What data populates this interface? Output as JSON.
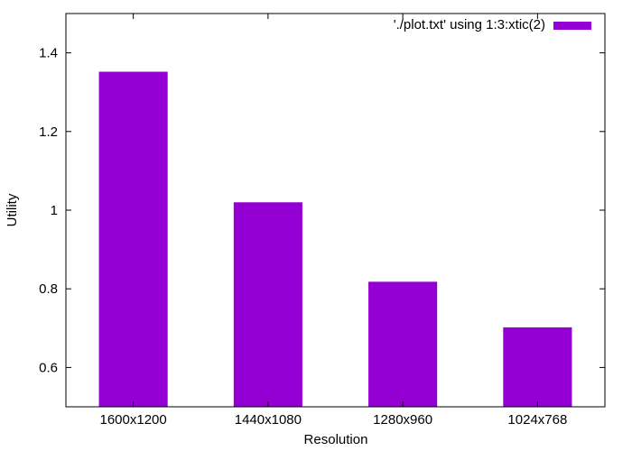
{
  "chart_data": {
    "type": "bar",
    "title": "",
    "xlabel": "Resolution",
    "ylabel": "Utility",
    "categories": [
      "1600x1200",
      "1440x1080",
      "1280x960",
      "1024x768"
    ],
    "series": [
      {
        "name": "'./plot.txt' using 1:3:xtic(2)",
        "values": [
          1.352,
          1.02,
          0.818,
          0.702
        ],
        "color": "#9400d3"
      }
    ],
    "ylim": [
      0.5,
      1.5
    ],
    "yticks": [
      0.6,
      0.8,
      1,
      1.2,
      1.4
    ],
    "ytick_labels": [
      "0.6",
      "0.8",
      "1",
      "1.2",
      "1.4"
    ],
    "grid": false,
    "legend_position": "top-right"
  }
}
